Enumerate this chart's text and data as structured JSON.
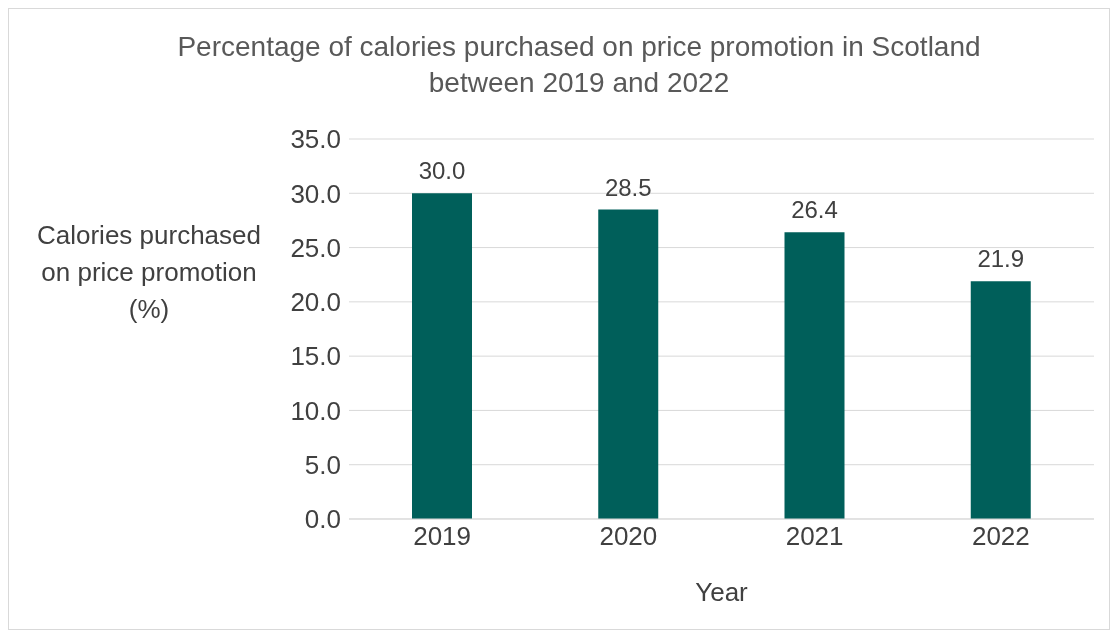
{
  "chart_data": {
    "type": "bar",
    "title": "Percentage of calories purchased on price promotion in Scotland between 2019 and 2022",
    "xlabel": "Year",
    "ylabel": "Calories purchased on price promotion (%)",
    "categories": [
      "2019",
      "2020",
      "2021",
      "2022"
    ],
    "values": [
      30.0,
      28.5,
      26.4,
      21.9
    ],
    "color": "#005f5a",
    "value_labels": [
      "30.0",
      "28.5",
      "26.4",
      "21.9"
    ],
    "ylim": [
      0,
      35
    ],
    "yticks": [
      {
        "value": 0,
        "label": "0.0"
      },
      {
        "value": 5,
        "label": "5.0"
      },
      {
        "value": 10,
        "label": "10.0"
      },
      {
        "value": 15,
        "label": "15.0"
      },
      {
        "value": 20,
        "label": "20.0"
      },
      {
        "value": 25,
        "label": "25.0"
      },
      {
        "value": 30,
        "label": "30.0"
      },
      {
        "value": 35,
        "label": "35.0"
      }
    ],
    "grid": "y",
    "legend": false
  }
}
